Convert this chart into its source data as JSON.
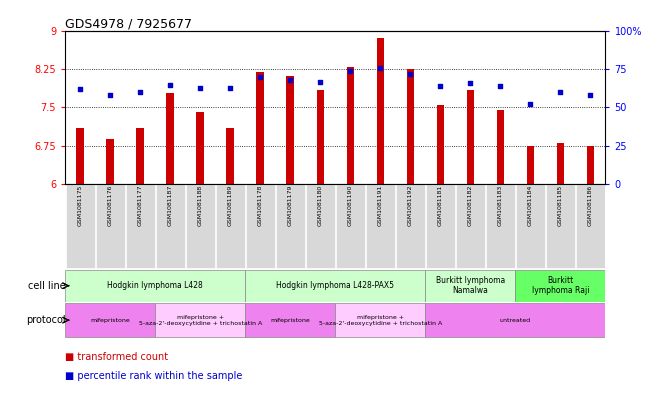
{
  "title": "GDS4978 / 7925677",
  "samples": [
    "GSM1081175",
    "GSM1081176",
    "GSM1081177",
    "GSM1081187",
    "GSM1081188",
    "GSM1081189",
    "GSM1081178",
    "GSM1081179",
    "GSM1081180",
    "GSM1081190",
    "GSM1081191",
    "GSM1081192",
    "GSM1081181",
    "GSM1081182",
    "GSM1081183",
    "GSM1081184",
    "GSM1081185",
    "GSM1081186"
  ],
  "transformed_counts": [
    7.1,
    6.87,
    7.1,
    7.78,
    7.42,
    7.1,
    8.2,
    8.12,
    7.85,
    8.3,
    8.87,
    8.25,
    7.55,
    7.85,
    7.45,
    6.75,
    6.8,
    6.75
  ],
  "percentile_ranks": [
    62,
    58,
    60,
    65,
    63,
    63,
    70,
    68,
    67,
    74,
    76,
    72,
    64,
    66,
    64,
    52,
    60,
    58
  ],
  "ylim_left": [
    6,
    9
  ],
  "ylim_right": [
    0,
    100
  ],
  "yticks_left": [
    6,
    6.75,
    7.5,
    8.25,
    9
  ],
  "yticks_right": [
    0,
    25,
    50,
    75,
    100
  ],
  "ytick_labels_left": [
    "6",
    "6.75",
    "7.5",
    "8.25",
    "9"
  ],
  "ytick_labels_right": [
    "0",
    "25",
    "50",
    "75",
    "100%"
  ],
  "bar_color": "#cc0000",
  "dot_color": "#0000cc",
  "cell_lines": [
    {
      "label": "Hodgkin lymphoma L428",
      "start": 0,
      "end": 6,
      "color": "#ccffcc"
    },
    {
      "label": "Hodgkin lymphoma L428-PAX5",
      "start": 6,
      "end": 12,
      "color": "#ccffcc"
    },
    {
      "label": "Burkitt lymphoma\nNamalwa",
      "start": 12,
      "end": 15,
      "color": "#ccffcc"
    },
    {
      "label": "Burkitt\nlymphoma Raji",
      "start": 15,
      "end": 18,
      "color": "#66ff66"
    }
  ],
  "protocols": [
    {
      "label": "mifepristone",
      "start": 0,
      "end": 3,
      "color": "#ee82ee"
    },
    {
      "label": "mifepristone +\n5-aza-2'-deoxycytidine + trichostatin A",
      "start": 3,
      "end": 6,
      "color": "#ffccff"
    },
    {
      "label": "mifepristone",
      "start": 6,
      "end": 9,
      "color": "#ee82ee"
    },
    {
      "label": "mifepristone +\n5-aza-2'-deoxycytidine + trichostatin A",
      "start": 9,
      "end": 12,
      "color": "#ffccff"
    },
    {
      "label": "untreated",
      "start": 12,
      "end": 18,
      "color": "#ee82ee"
    }
  ],
  "cell_line_label": "cell line",
  "protocol_label": "protocol",
  "background_color": "#ffffff",
  "bar_width": 0.25
}
